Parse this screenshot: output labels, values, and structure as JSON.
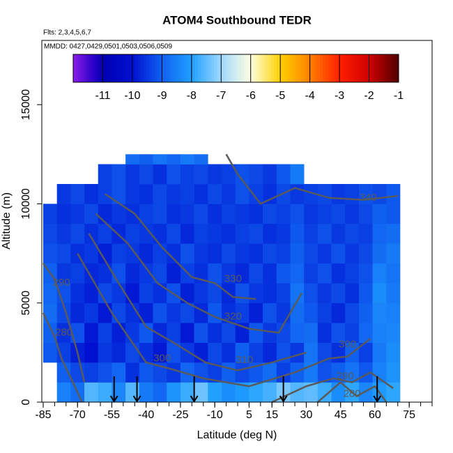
{
  "chart_data": {
    "type": "heatmap",
    "title": "ATOM4 Southbound TEDR",
    "subtitle": "Flts: 2,3,4,5,6,7",
    "annotation": "MMDD: 0427,0429,0501,0503,0506,0509",
    "x_label": "Latitude (deg N)",
    "y_label": "Altitude (m)",
    "xlim": [
      -85.6,
      85
    ],
    "ylim": [
      0,
      18240
    ],
    "xticks": [
      -85,
      -70,
      -55,
      -40,
      -25,
      -10,
      5,
      15,
      30,
      45,
      60,
      75
    ],
    "xminorticks": [
      -85,
      -80,
      -75,
      -70,
      -65,
      -60,
      -55,
      -50,
      -45,
      -40,
      -35,
      -30,
      -25,
      -20,
      -15,
      -10,
      -5,
      0,
      5,
      10,
      15,
      20,
      25,
      30,
      35,
      40,
      45,
      50,
      55,
      60,
      65,
      70,
      75,
      80,
      85
    ],
    "yticks": [
      0,
      5000,
      10000,
      15000
    ],
    "lat_edges": [
      -85,
      -79,
      -73,
      -67,
      -61,
      -55,
      -49,
      -43,
      -37,
      -31,
      -25,
      -19,
      -13,
      -7,
      -1,
      5,
      11,
      17,
      23,
      29,
      35,
      41,
      47,
      53,
      59,
      65,
      71
    ],
    "alt_edges": [
      0,
      1000,
      2000,
      3000,
      4000,
      5000,
      6000,
      7000,
      8000,
      9000,
      10000,
      11000,
      12000,
      12500
    ],
    "z": [
      [
        null,
        -8.5,
        -8.8,
        -7.6,
        -7.8,
        -8.4,
        -7.6,
        -8.6,
        -8.9,
        -8.2,
        -7.8,
        -7.4,
        -8.0,
        -8.3,
        -8.1,
        -7.9,
        -7.7,
        -7.3,
        -7.6,
        -7.5,
        -7.8,
        -8.3,
        -7.9,
        -8.4,
        -8.1,
        -7.9
      ],
      [
        null,
        -9.0,
        -9.3,
        -9.4,
        -9.2,
        -8.9,
        -9.6,
        -9.1,
        -9.3,
        -9.5,
        -8.9,
        -9.2,
        -9.4,
        -9.0,
        -9.3,
        -9.1,
        -8.8,
        -9.4,
        -9.0,
        -8.6,
        -9.2,
        -9.0,
        -8.7,
        -9.1,
        -8.5,
        -8.2
      ],
      [
        -9.1,
        -9.4,
        -9.8,
        -10.0,
        -9.5,
        -9.7,
        -9.3,
        -9.6,
        -9.9,
        -9.2,
        -9.5,
        -9.8,
        -9.3,
        -9.6,
        -9.0,
        -9.4,
        -9.7,
        -9.2,
        -9.5,
        -8.7,
        -9.3,
        -9.6,
        -9.0,
        -9.4,
        -8.6,
        -8.3
      ],
      [
        -9.0,
        -9.6,
        -9.2,
        -9.9,
        -9.4,
        -9.8,
        -9.5,
        -9.1,
        -9.7,
        -9.4,
        -9.9,
        -9.2,
        -9.6,
        -9.3,
        -9.8,
        -9.1,
        -9.5,
        -9.3,
        -8.9,
        -8.8,
        -9.6,
        -9.2,
        -9.4,
        -8.9,
        -8.5,
        -8.4
      ],
      [
        -8.8,
        -9.3,
        -9.7,
        -9.5,
        -9.9,
        -9.3,
        -9.6,
        -9.8,
        -9.2,
        -9.5,
        -9.3,
        -9.7,
        -9.1,
        -9.6,
        -9.4,
        -9.8,
        -9.2,
        -9.5,
        -8.8,
        -9.1,
        -9.4,
        -9.7,
        -9.3,
        -9.0,
        -8.4,
        -8.5
      ],
      [
        -8.9,
        -9.2,
        -9.6,
        -9.8,
        -9.3,
        -9.5,
        -9.9,
        -9.4,
        -9.6,
        -9.2,
        -9.8,
        -9.5,
        -9.3,
        -9.7,
        -9.2,
        -9.5,
        -9.6,
        -9.4,
        -8.7,
        -9.2,
        -9.5,
        -9.3,
        -9.6,
        -9.1,
        -8.3,
        -8.6
      ],
      [
        -9.0,
        -9.5,
        -9.4,
        -9.7,
        -9.6,
        -9.2,
        -9.7,
        -9.5,
        -9.3,
        -9.8,
        -9.4,
        -9.6,
        -9.2,
        -9.5,
        -9.7,
        -9.3,
        -9.6,
        -9.1,
        -8.9,
        -9.4,
        -9.2,
        -9.6,
        -9.4,
        -9.2,
        -8.5,
        -8.7
      ],
      [
        -9.2,
        -9.3,
        -9.6,
        -9.5,
        -9.8,
        -9.4,
        -9.5,
        -9.7,
        -9.4,
        -9.6,
        -9.2,
        -9.5,
        -9.6,
        -9.3,
        -9.5,
        -9.6,
        -9.3,
        -9.4,
        -9.0,
        -9.3,
        -9.5,
        -9.2,
        -9.5,
        -9.3,
        -8.8,
        -8.6
      ],
      [
        -9.3,
        -9.5,
        -9.3,
        -9.6,
        -9.4,
        -9.7,
        -9.4,
        -9.5,
        -9.6,
        -9.3,
        -9.7,
        -9.4,
        -9.5,
        -9.6,
        -9.4,
        -9.3,
        -9.6,
        -9.5,
        -9.1,
        -9.4,
        -9.2,
        -9.5,
        -9.3,
        -9.4,
        -8.9,
        -8.8
      ],
      [
        -9.4,
        -9.6,
        -9.5,
        -9.3,
        -9.7,
        -9.5,
        -9.6,
        -9.4,
        -9.3,
        -9.6,
        -9.5,
        -9.3,
        -9.6,
        -9.4,
        -9.5,
        -9.6,
        -9.3,
        -9.4,
        -9.2,
        -9.5,
        -9.4,
        -9.3,
        -9.5,
        -9.3,
        -9.0,
        -9.1
      ],
      [
        null,
        -9.5,
        -9.3,
        -9.6,
        -9.4,
        -9.2,
        -9.5,
        -9.6,
        -9.3,
        -9.5,
        -9.4,
        -9.6,
        -9.3,
        -9.5,
        -9.2,
        -9.4,
        -9.6,
        -9.3,
        -9.5,
        -9.4,
        -9.3,
        -9.5,
        -9.4,
        -9.2,
        -9.3,
        -9.1
      ],
      [
        null,
        null,
        null,
        null,
        -9.4,
        -9.2,
        -9.5,
        -9.3,
        -9.6,
        -9.2,
        -9.4,
        -9.3,
        -9.5,
        -9.4,
        -9.2,
        -9.3,
        -9.5,
        -9.1,
        -8.6,
        null,
        null,
        null,
        null,
        null,
        null,
        null
      ],
      [
        null,
        null,
        null,
        null,
        null,
        null,
        -8.8,
        -9.0,
        -8.7,
        -8.9,
        -8.6,
        -8.8,
        null,
        null,
        null,
        null,
        null,
        null,
        null,
        null,
        null,
        null,
        null,
        null,
        null,
        null
      ]
    ],
    "colorbar": {
      "lim": [
        -12,
        -1
      ],
      "ticks": [
        -11,
        -10,
        -9,
        -8,
        -7,
        -6,
        -5,
        -4,
        -3,
        -2,
        -1
      ],
      "stops": [
        [
          -12,
          "#8b1ee8"
        ],
        [
          -11.3,
          "#2a00c8"
        ],
        [
          -11,
          "#0000b0"
        ],
        [
          -10,
          "#0010d0"
        ],
        [
          -9,
          "#1060f0"
        ],
        [
          -8,
          "#20a0ff"
        ],
        [
          -7,
          "#a0d8ff"
        ],
        [
          -6,
          "#ffffe0"
        ],
        [
          -5,
          "#ffd000"
        ],
        [
          -4,
          "#ff8000"
        ],
        [
          -3,
          "#ff2000"
        ],
        [
          -2,
          "#d00000"
        ],
        [
          -1,
          "#500000"
        ]
      ]
    },
    "contour_color": "#5a5a5a",
    "contours": [
      {
        "level": 280,
        "x": [
          -85,
          -80,
          -77,
          -72,
          -68
        ],
        "y": [
          4500,
          3300,
          2200,
          1000,
          0
        ]
      },
      {
        "level": 280,
        "x": [
          35,
          45,
          52,
          60,
          65
        ],
        "y": [
          0,
          1000,
          300,
          800,
          0
        ]
      },
      {
        "level": 290,
        "x": [
          -85,
          -80,
          -75,
          -70,
          -67
        ],
        "y": [
          7000,
          6200,
          4500,
          2500,
          1000
        ]
      },
      {
        "level": 290,
        "x": [
          15,
          30,
          42,
          50,
          58,
          68
        ],
        "y": [
          0,
          800,
          1200,
          1000,
          1500,
          700
        ]
      },
      {
        "level": 300,
        "x": [
          -70,
          -55,
          -40,
          -30,
          -15,
          5,
          25,
          40,
          48,
          58
        ],
        "y": [
          7500,
          4500,
          2000,
          1700,
          1200,
          800,
          1500,
          2200,
          2300,
          3200
        ]
      },
      {
        "level": 310,
        "x": [
          -65,
          -52,
          -40,
          -28,
          -14,
          0,
          15,
          30
        ],
        "y": [
          8500,
          6000,
          3800,
          3000,
          2000,
          1600,
          2000,
          2500
        ]
      },
      {
        "level": 320,
        "x": [
          -62,
          -48,
          -35,
          -22,
          -10,
          5,
          18,
          28
        ],
        "y": [
          9500,
          8000,
          6000,
          5000,
          4300,
          3700,
          3500,
          5500
        ]
      },
      {
        "level": 330,
        "x": [
          -58,
          -45,
          -33,
          -20,
          -10,
          -2,
          8
        ],
        "y": [
          10500,
          9500,
          7800,
          6300,
          6000,
          5300,
          5200
        ]
      },
      {
        "level": 340,
        "x": [
          -5,
          0,
          10,
          25,
          40,
          55,
          70
        ],
        "y": [
          12500,
          11500,
          10000,
          10800,
          10300,
          10200,
          10400
        ]
      }
    ],
    "contour_labels": [
      {
        "level": 280,
        "x": -76,
        "y": 3500
      },
      {
        "level": 290,
        "x": -77,
        "y": 6000
      },
      {
        "level": 300,
        "x": -33,
        "y": 2200
      },
      {
        "level": 310,
        "x": 3,
        "y": 2100
      },
      {
        "level": 320,
        "x": -2,
        "y": 4300
      },
      {
        "level": 330,
        "x": -2,
        "y": 6200
      },
      {
        "level": 340,
        "x": 57,
        "y": 10300
      },
      {
        "level": 300,
        "x": 48,
        "y": 2900
      },
      {
        "level": 290,
        "x": 47,
        "y": 1300
      },
      {
        "level": 280,
        "x": 50,
        "y": 400
      }
    ],
    "profile_markers": [
      -54,
      -44,
      -19,
      20,
      61
    ],
    "profile_marker_top": 600
  }
}
